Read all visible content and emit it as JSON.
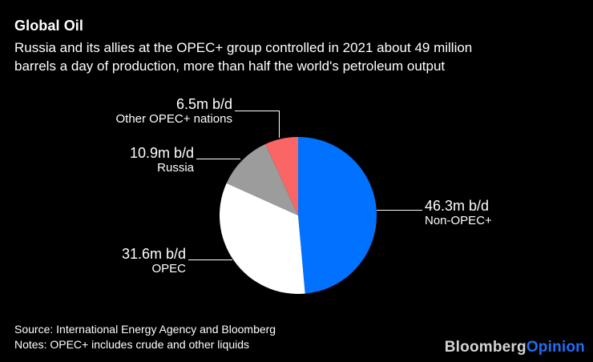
{
  "header": {
    "title": "Global Oil",
    "subtitle_lines": [
      "Russia and its allies at the OPEC+ group controlled in 2021 about 49 million",
      "barrels a day of production, more than half the world's petroleum output"
    ]
  },
  "chart_data": {
    "type": "pie",
    "title": "Global Oil",
    "unit": "m b/d",
    "total_value": 95.3,
    "start_angle_deg": 0,
    "direction": "clockwise",
    "legend_position": "callout-labels",
    "background_color": "#000000",
    "slices": [
      {
        "label": "Non-OPEC+",
        "value": 46.3,
        "value_text": "46.3m b/d",
        "color": "#0072ff"
      },
      {
        "label": "OPEC",
        "value": 31.6,
        "value_text": "31.6m b/d",
        "color": "#ffffff"
      },
      {
        "label": "Russia",
        "value": 10.9,
        "value_text": "10.9m b/d",
        "color": "#9c9c9c"
      },
      {
        "label": "Other OPEC+ nations",
        "value": 6.5,
        "value_text": "6.5m b/d",
        "color": "#fa6666"
      }
    ]
  },
  "footer": {
    "source": "Source: International Energy Agency and Bloomberg",
    "notes": "Notes: OPEC+ includes crude and other liquids"
  },
  "logo": {
    "part1": "Bloomberg",
    "part2": "Opinion",
    "part1_color": "#d4d4d4",
    "part2_color": "#1f6ef5"
  }
}
